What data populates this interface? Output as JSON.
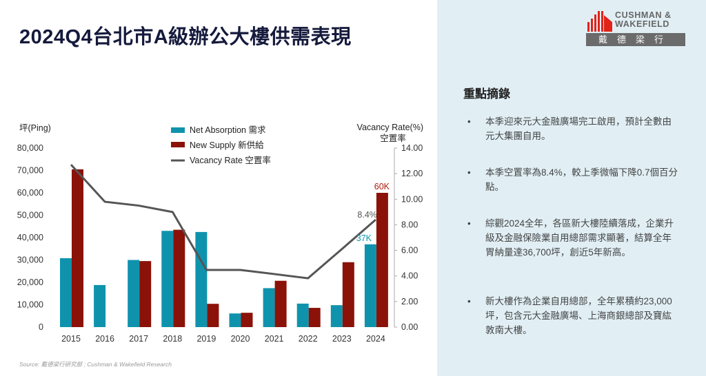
{
  "title": "2024Q4台北市A級辦公大樓供需表現",
  "logo": {
    "line1": "CUSHMAN &",
    "line2": "WAKEFIELD",
    "chinese": "戴德梁行"
  },
  "highlights": {
    "title": "重點摘錄",
    "items": [
      "本季迎來元大金融廣場完工啟用，預計全數由元大集團自用。",
      "本季空置率為8.4%，較上季微幅下降0.7個百分點。",
      "綜觀2024全年，各區新大樓陸續落成，企業升級及金融保險業自用總部需求顯著，結算全年胃納量達36,700坪，創近5年新高。",
      "新大樓作為企業自用總部，全年累積約23,000坪，包含元大金融廣場、上海商銀總部及寶紘敦南大樓。"
    ]
  },
  "source": "Source: 戴德梁行研究部 ; Cushman & Wakefield Research",
  "chart_data": {
    "type": "bar",
    "categories": [
      "2015",
      "2016",
      "2017",
      "2018",
      "2019",
      "2020",
      "2021",
      "2022",
      "2023",
      "2024"
    ],
    "ylabel": "坪(Ping)",
    "y2label_1": "Vacancy Rate(%)",
    "y2label_2": "空置率",
    "ylim": [
      0,
      80000
    ],
    "y2lim": [
      0,
      14
    ],
    "yticks": [
      "0",
      "10,000",
      "20,000",
      "30,000",
      "40,000",
      "50,000",
      "60,000",
      "70,000",
      "80,000"
    ],
    "y2ticks": [
      "0.00",
      "2.00",
      "4.00",
      "6.00",
      "8.00",
      "10.00",
      "12.00",
      "14.00"
    ],
    "series": [
      {
        "name": "Net Absorption 需求",
        "type": "bar",
        "color": "#0f93ad",
        "values": [
          30800,
          18800,
          30000,
          43000,
          42500,
          6100,
          17400,
          10500,
          9800,
          37000
        ]
      },
      {
        "name": "New Supply 新供給",
        "type": "bar",
        "color": "#8b1208",
        "values": [
          70500,
          0,
          29500,
          43500,
          10400,
          6400,
          20700,
          8600,
          29000,
          60000
        ]
      },
      {
        "name": "Vacancy Rate 空置率",
        "type": "line",
        "axis": "right",
        "color": "#555555",
        "values": [
          12.7,
          9.8,
          9.5,
          9.0,
          4.47,
          4.47,
          4.15,
          3.82,
          6.1,
          8.4
        ]
      }
    ],
    "annotations": {
      "absorption_2024": "37K",
      "supply_2024": "60K",
      "vacancy_2024": "8.4%"
    },
    "legend": "top-center",
    "grid": false
  }
}
